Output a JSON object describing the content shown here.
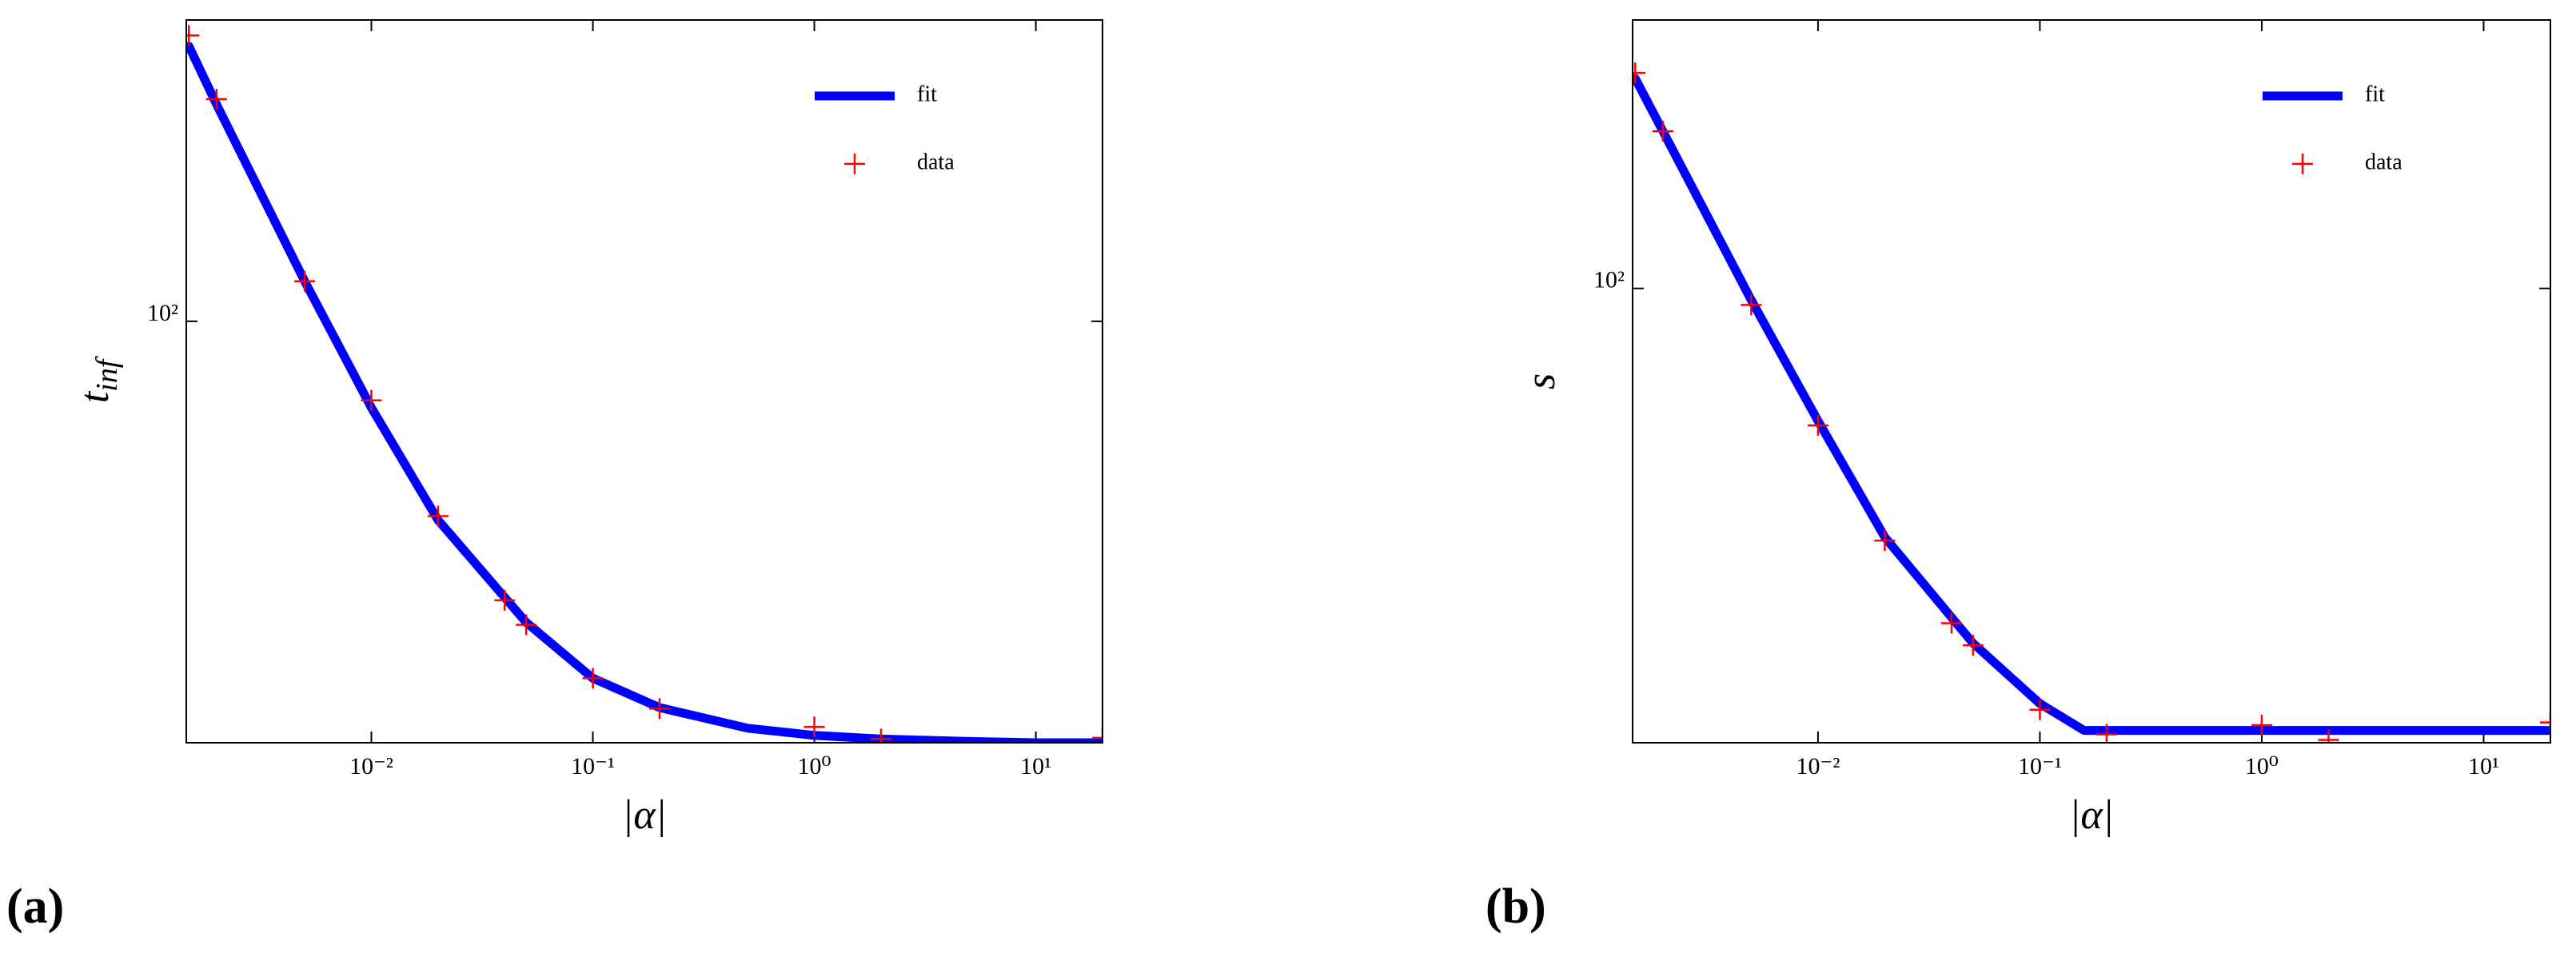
{
  "chart_data": [
    {
      "type": "line",
      "panel_label": "(a)",
      "xlabel": "|α|",
      "ylabel": "t",
      "ylabel_sub": "inf",
      "xscale": "log",
      "yscale": "log",
      "legend": "upper right",
      "xlim": [
        0.00146,
        20
      ],
      "ylim": [
        23,
        286
      ],
      "xticks": [
        {
          "value": 0.01,
          "label": "10⁻²"
        },
        {
          "value": 0.1,
          "label": "10⁻¹"
        },
        {
          "value": 1,
          "label": "10⁰"
        },
        {
          "value": 10,
          "label": "10¹"
        }
      ],
      "yticks": [
        {
          "value": 100,
          "label": "10²"
        }
      ],
      "series": [
        {
          "name": "fit",
          "color": "#0000ff",
          "x": [
            0.0015,
            0.002,
            0.005,
            0.01,
            0.02,
            0.05,
            0.1,
            0.2,
            0.5,
            1,
            2,
            5,
            10,
            20
          ],
          "values": [
            261,
            213,
            115,
            74,
            50,
            35,
            28.8,
            26,
            24.2,
            23.6,
            23.3,
            23.1,
            23.0,
            23.0
          ]
        },
        {
          "name": "data",
          "color": "#ff0000",
          "marker": "+",
          "x": [
            0.0015,
            0.002,
            0.005,
            0.01,
            0.02,
            0.04,
            0.05,
            0.1,
            0.2,
            1,
            2,
            20
          ],
          "values": [
            271,
            217,
            115,
            75.9,
            50.7,
            37.8,
            34.7,
            28.8,
            25.9,
            24.3,
            23.3,
            23.4
          ]
        }
      ]
    },
    {
      "type": "line",
      "panel_label": "(b)",
      "xlabel": "|α|",
      "ylabel": "s",
      "xscale": "log",
      "yscale": "log",
      "legend": "upper right",
      "xlim": [
        0.00146,
        20
      ],
      "ylim": [
        20.5,
        255
      ],
      "xticks": [
        {
          "value": 0.01,
          "label": "10⁻²"
        },
        {
          "value": 0.1,
          "label": "10⁻¹"
        },
        {
          "value": 1,
          "label": "10⁰"
        },
        {
          "value": 10,
          "label": "10¹"
        }
      ],
      "yticks": [
        {
          "value": 100,
          "label": "10²"
        }
      ],
      "series": [
        {
          "name": "fit",
          "color": "#0000ff",
          "x": [
            0.0015,
            0.002,
            0.005,
            0.01,
            0.02,
            0.05,
            0.1,
            0.158,
            1,
            20
          ],
          "values": [
            208,
            173,
            96,
            63,
            42,
            29,
            23.5,
            21.4,
            21.4,
            21.4
          ]
        },
        {
          "name": "data",
          "color": "#ff0000",
          "marker": "+",
          "x": [
            0.0015,
            0.002,
            0.005,
            0.01,
            0.02,
            0.04,
            0.05,
            0.1,
            0.2,
            1,
            2,
            20
          ],
          "values": [
            212,
            173,
            94.4,
            62,
            41.5,
            31.1,
            28.8,
            23.0,
            21.1,
            21.8,
            20.7,
            22.0
          ]
        }
      ]
    }
  ]
}
